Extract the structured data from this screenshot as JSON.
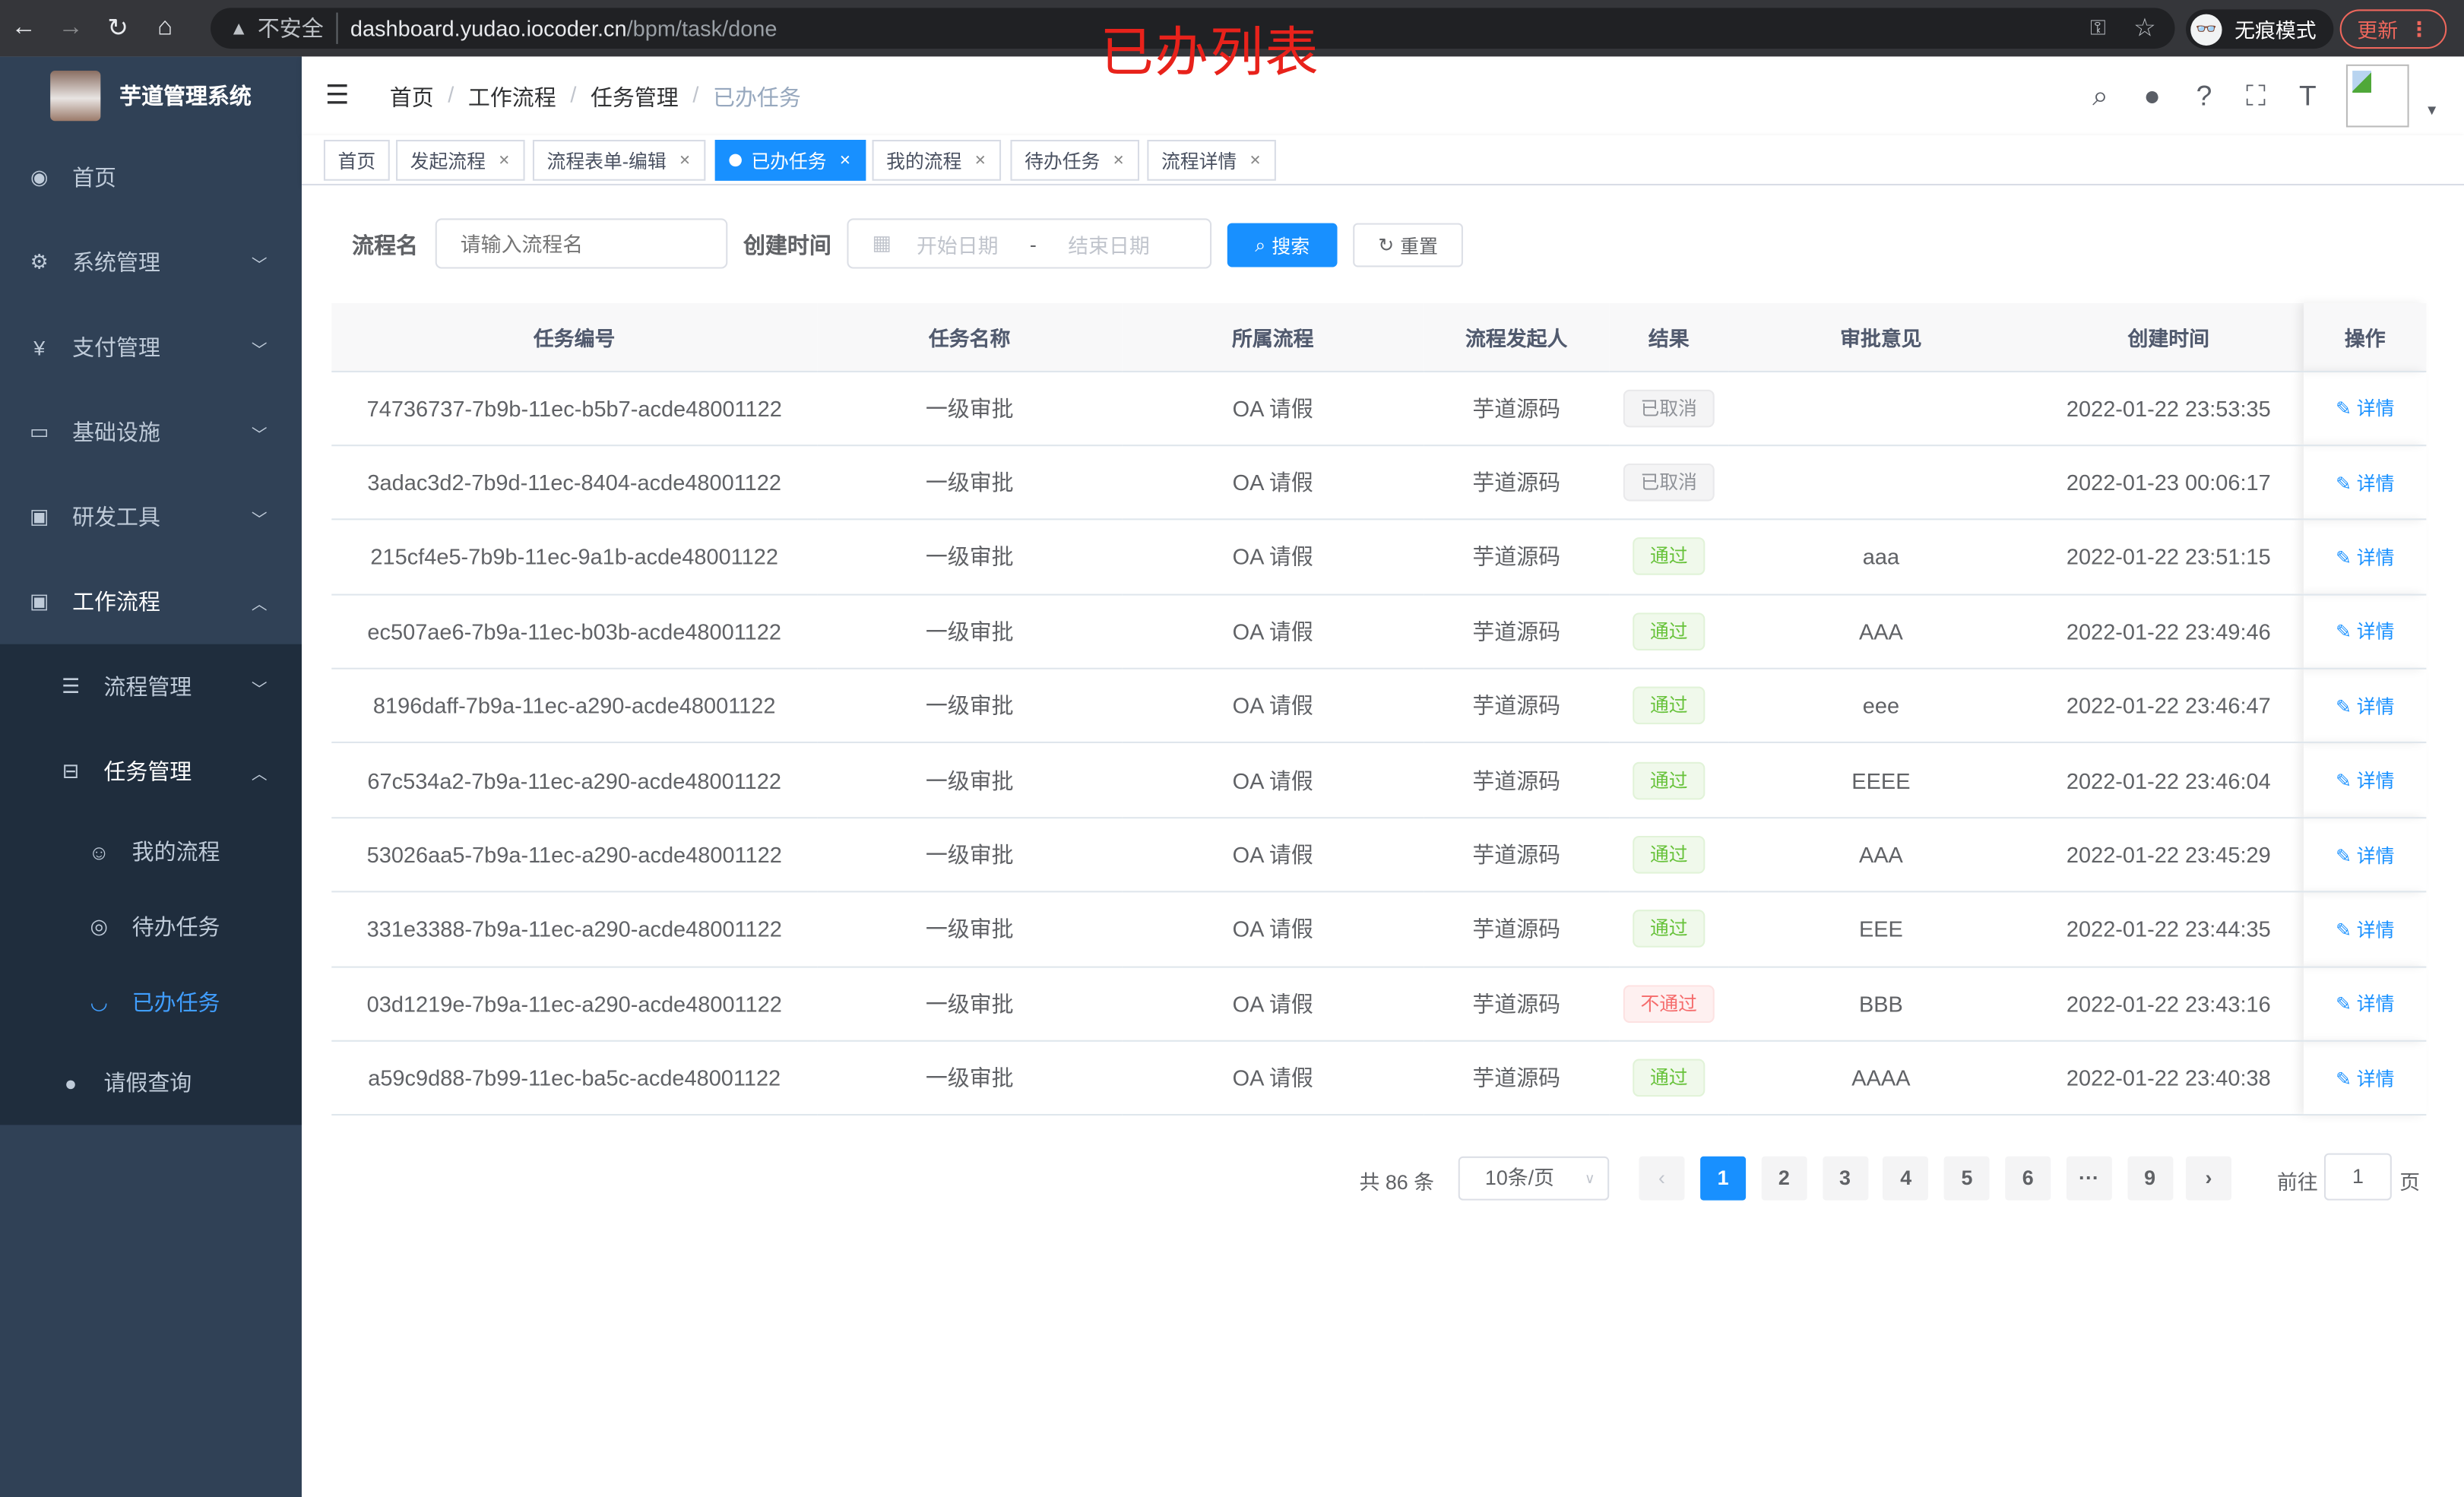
{
  "browser": {
    "insecure": "不安全",
    "host": "dashboard.yudao.iocoder.cn",
    "path": "/bpm/task/done",
    "incognito": "无痕模式",
    "update": "更新"
  },
  "overlay_title": "已办列表",
  "sidebar": {
    "title": "芋道管理系统",
    "items": [
      {
        "label": "首页",
        "icon": "dashboard-icon"
      },
      {
        "label": "系统管理",
        "icon": "gear-icon"
      },
      {
        "label": "支付管理",
        "icon": "yen-icon"
      },
      {
        "label": "基础设施",
        "icon": "monitor-icon"
      },
      {
        "label": "研发工具",
        "icon": "toolbox-icon"
      },
      {
        "label": "工作流程",
        "icon": "toolbox-icon"
      }
    ],
    "workflow_children": [
      {
        "label": "流程管理",
        "icon": "list-icon"
      },
      {
        "label": "任务管理",
        "icon": "tree-icon"
      }
    ],
    "task_children": [
      {
        "label": "我的流程",
        "icon": "people-icon"
      },
      {
        "label": "待办任务",
        "icon": "eye-icon"
      },
      {
        "label": "已办任务",
        "icon": "eye-closed-icon"
      }
    ],
    "leave": {
      "label": "请假查询",
      "icon": "user-icon"
    }
  },
  "breadcrumb": [
    "首页",
    "工作流程",
    "任务管理",
    "已办任务"
  ],
  "tags": [
    "首页",
    "发起流程",
    "流程表单-编辑",
    "已办任务",
    "我的流程",
    "待办任务",
    "流程详情"
  ],
  "search": {
    "name_label": "流程名",
    "name_placeholder": "请输入流程名",
    "time_label": "创建时间",
    "start_placeholder": "开始日期",
    "range_sep": "-",
    "end_placeholder": "结束日期",
    "search_btn": "搜索",
    "reset_btn": "重置"
  },
  "table": {
    "headers": [
      "任务编号",
      "任务名称",
      "所属流程",
      "流程发起人",
      "结果",
      "审批意见",
      "创建时间",
      "操作"
    ],
    "action_label": "详情",
    "rows": [
      {
        "id": "74736737-7b9b-11ec-b5b7-acde48001122",
        "name": "一级审批",
        "process": "OA 请假",
        "initiator": "芋道源码",
        "result": "已取消",
        "result_type": "info",
        "opinion": "",
        "time": "2022-01-22 23:53:35"
      },
      {
        "id": "3adac3d2-7b9d-11ec-8404-acde48001122",
        "name": "一级审批",
        "process": "OA 请假",
        "initiator": "芋道源码",
        "result": "已取消",
        "result_type": "info",
        "opinion": "",
        "time": "2022-01-23 00:06:17"
      },
      {
        "id": "215cf4e5-7b9b-11ec-9a1b-acde48001122",
        "name": "一级审批",
        "process": "OA 请假",
        "initiator": "芋道源码",
        "result": "通过",
        "result_type": "success",
        "opinion": "aaa",
        "time": "2022-01-22 23:51:15"
      },
      {
        "id": "ec507ae6-7b9a-11ec-b03b-acde48001122",
        "name": "一级审批",
        "process": "OA 请假",
        "initiator": "芋道源码",
        "result": "通过",
        "result_type": "success",
        "opinion": "AAA",
        "time": "2022-01-22 23:49:46"
      },
      {
        "id": "8196daff-7b9a-11ec-a290-acde48001122",
        "name": "一级审批",
        "process": "OA 请假",
        "initiator": "芋道源码",
        "result": "通过",
        "result_type": "success",
        "opinion": "eee",
        "time": "2022-01-22 23:46:47"
      },
      {
        "id": "67c534a2-7b9a-11ec-a290-acde48001122",
        "name": "一级审批",
        "process": "OA 请假",
        "initiator": "芋道源码",
        "result": "通过",
        "result_type": "success",
        "opinion": "EEEE",
        "time": "2022-01-22 23:46:04"
      },
      {
        "id": "53026aa5-7b9a-11ec-a290-acde48001122",
        "name": "一级审批",
        "process": "OA 请假",
        "initiator": "芋道源码",
        "result": "通过",
        "result_type": "success",
        "opinion": "AAA",
        "time": "2022-01-22 23:45:29"
      },
      {
        "id": "331e3388-7b9a-11ec-a290-acde48001122",
        "name": "一级审批",
        "process": "OA 请假",
        "initiator": "芋道源码",
        "result": "通过",
        "result_type": "success",
        "opinion": "EEE",
        "time": "2022-01-22 23:44:35"
      },
      {
        "id": "03d1219e-7b9a-11ec-a290-acde48001122",
        "name": "一级审批",
        "process": "OA 请假",
        "initiator": "芋道源码",
        "result": "不通过",
        "result_type": "danger",
        "opinion": "BBB",
        "time": "2022-01-22 23:43:16"
      },
      {
        "id": "a59c9d88-7b99-11ec-ba5c-acde48001122",
        "name": "一级审批",
        "process": "OA 请假",
        "initiator": "芋道源码",
        "result": "通过",
        "result_type": "success",
        "opinion": "AAAA",
        "time": "2022-01-22 23:40:38"
      }
    ]
  },
  "pagination": {
    "total": "共 86 条",
    "page_size": "10条/页",
    "pages": [
      "1",
      "2",
      "3",
      "4",
      "5",
      "6",
      "···",
      "9"
    ],
    "current": "1",
    "goto_label": "前往",
    "goto_value": "1",
    "page_suffix": "页"
  },
  "colors": {
    "primary": "#1890ff",
    "sidebar": "#304156",
    "success": "#67c23a",
    "danger": "#f56c6c",
    "info": "#909399"
  }
}
